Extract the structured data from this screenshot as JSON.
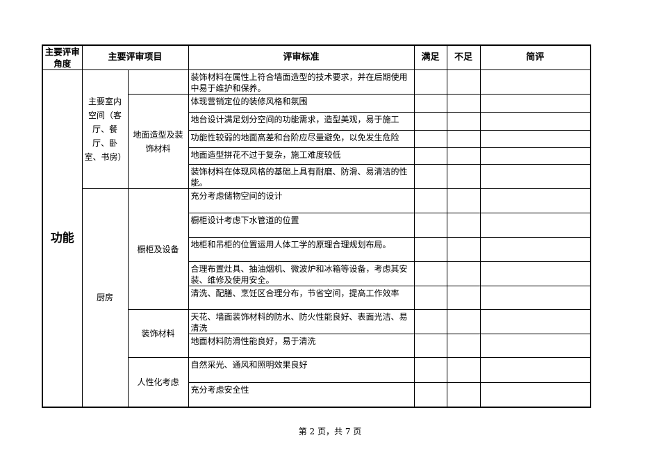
{
  "header": {
    "angle": "主要评审角度",
    "item": "主要评审项目",
    "standard": "评审标准",
    "satisfied": "满足",
    "insufficient": "不足",
    "comment": "简评"
  },
  "category": "功能",
  "sections": [
    {
      "space": "主要室内空间（客厅、餐厅、卧室、书房）",
      "groups": [
        {
          "name": "",
          "criteria": [
            "装饰材料在属性上符合墙面造型的技术要求，并在后期使用中易于维护和保养。"
          ]
        },
        {
          "name": "地面造型及装饰材料",
          "criteria": [
            "体现营销定位的装修风格和氛围",
            "地台设计满足划分空间的功能需求，造型美观，易于施工",
            "功能性较弱的地面高差和台阶应尽量避免，以免发生危险",
            "地面造型拼花不过于复杂，施工难度较低",
            "装饰材料在体现风格的基础上具有耐磨、防滑、易清洁的性能。"
          ]
        }
      ]
    },
    {
      "space": "厨房",
      "groups": [
        {
          "name": "橱柜及设备",
          "criteria": [
            "充分考虑储物空间的设计",
            "橱柜设计考虑下水管道的位置",
            "地柜和吊柜的位置运用人体工学的原理合理规划布局。",
            "合理布置灶具、抽油烟机、微波炉和冰箱等设备，考虑其安装、维修及使用安全。",
            "清洗、配膳、烹饪区合理分布，节省空间，提高工作效率"
          ]
        },
        {
          "name": "装饰材料",
          "criteria": [
            "天花、墙面装饰材料的防水、防火性能良好、表面光洁、易清洗",
            "地面材料防滑性能良好，易于清洗"
          ]
        },
        {
          "name": "人性化考虑",
          "criteria": [
            "自然采光、通风和照明效果良好",
            "充分考虑安全性"
          ]
        }
      ]
    }
  ],
  "footer": "第 2 页，共 7 页"
}
